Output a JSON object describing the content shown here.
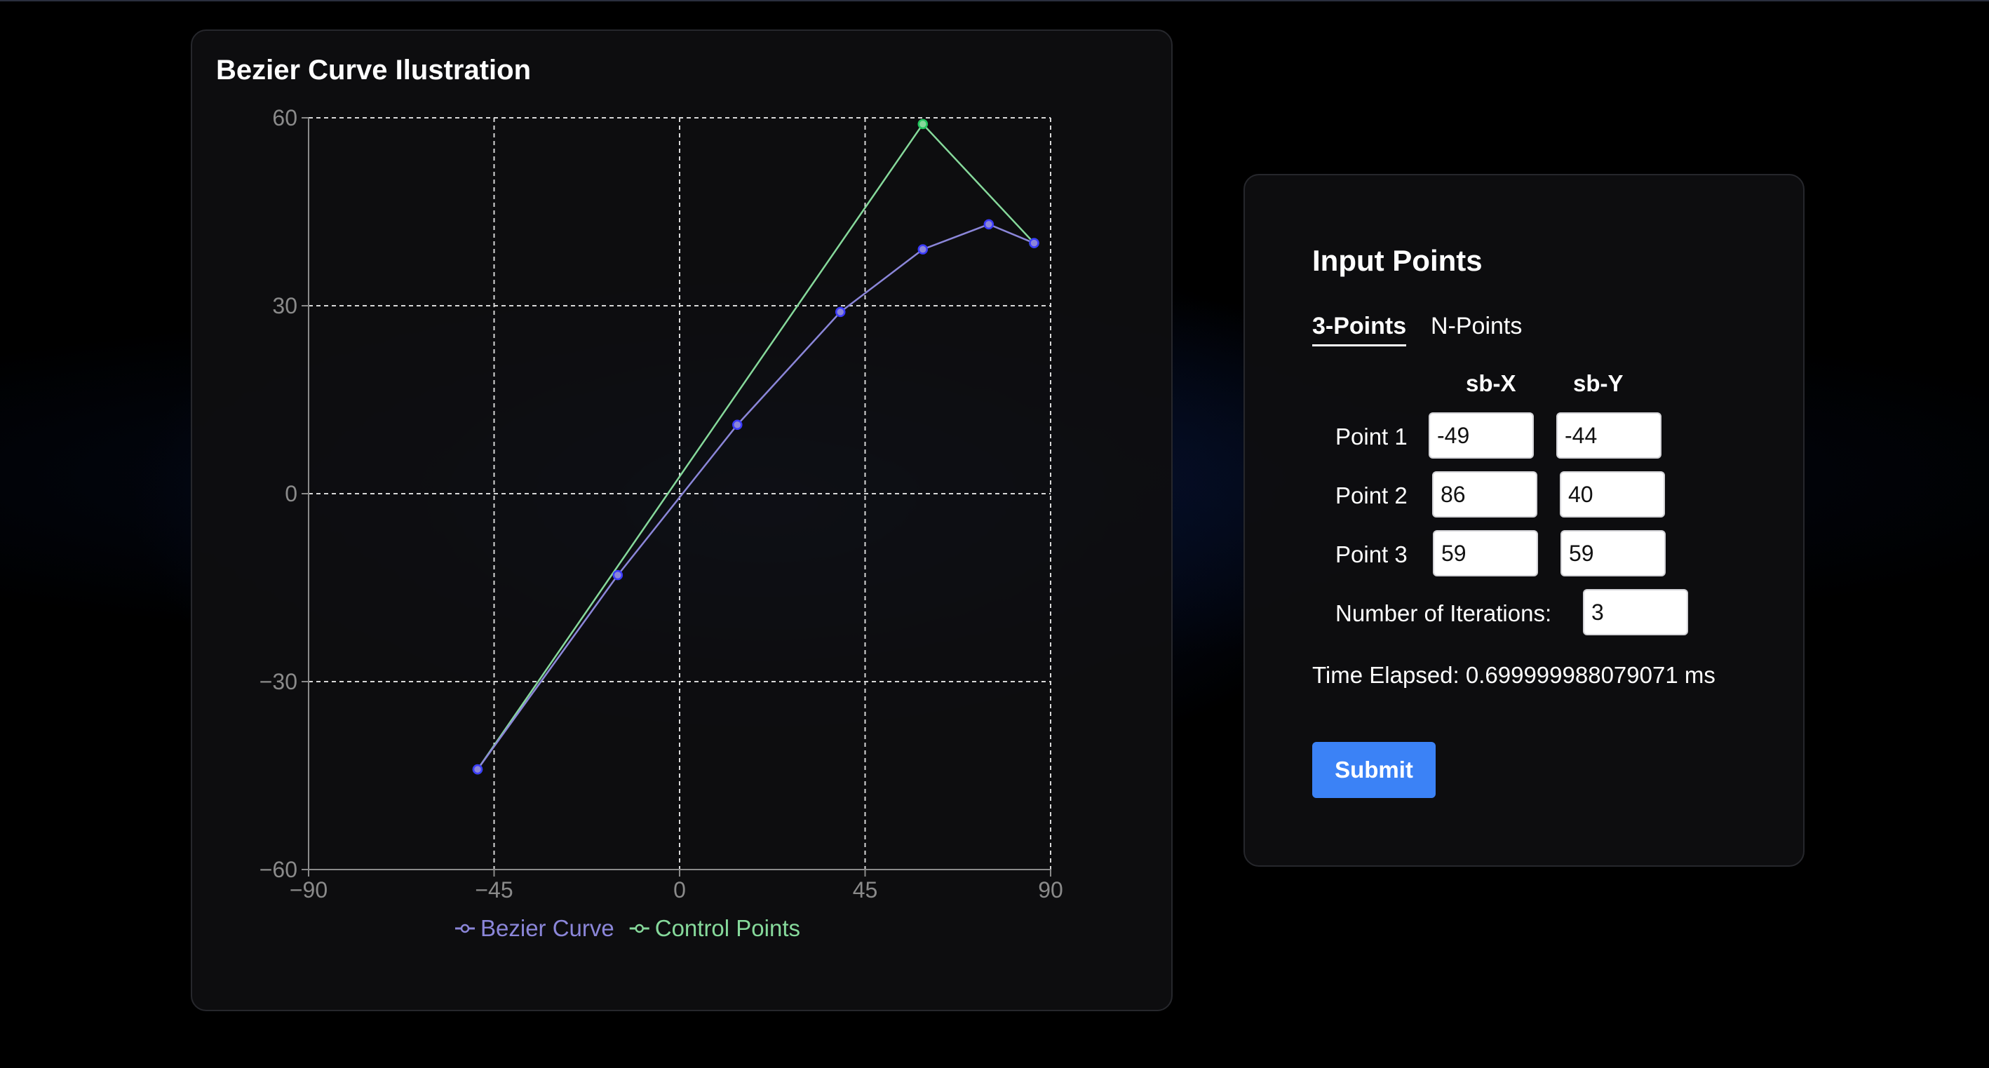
{
  "chart": {
    "title": "Bezier Curve Ilustration"
  },
  "chart_data": {
    "type": "line",
    "title": "Bezier Curve Ilustration",
    "xlabel": "",
    "ylabel": "",
    "xlim": [
      -90,
      90
    ],
    "ylim": [
      -60,
      60
    ],
    "x_ticks": [
      -90,
      -45,
      0,
      45,
      90
    ],
    "y_ticks": [
      -60,
      -30,
      0,
      30,
      60
    ],
    "grid": true,
    "legend_position": "bottom-center",
    "series": [
      {
        "name": "Bezier Curve",
        "color": "#8b86d9",
        "marker_color": "#3b3bff",
        "points": [
          [
            -49,
            -44
          ],
          [
            -15,
            -13
          ],
          [
            14,
            11
          ],
          [
            39,
            29
          ],
          [
            59,
            39
          ],
          [
            75,
            43
          ],
          [
            86,
            40
          ]
        ]
      },
      {
        "name": "Control Points",
        "color": "#86d99b",
        "marker_color": "#22c55e",
        "points": [
          [
            -49,
            -44
          ],
          [
            59,
            59
          ],
          [
            86,
            40
          ]
        ]
      }
    ]
  },
  "input_panel": {
    "title": "Input Points",
    "tabs": [
      "3-Points",
      "N-Points"
    ],
    "active_tab": "3-Points",
    "col_x": "sb-X",
    "col_y": "sb-Y",
    "points": [
      {
        "label": "Point 1",
        "x": "-49",
        "y": "-44"
      },
      {
        "label": "Point 2",
        "x": "86",
        "y": "40"
      },
      {
        "label": "Point 3",
        "x": "59",
        "y": "59"
      }
    ],
    "iterations_label": "Number of Iterations:",
    "iterations_value": "3",
    "time_label": "Time Elapsed:",
    "time_value": "0.699999988079071",
    "time_unit": "ms",
    "submit_label": "Submit",
    "accent": "#3b82f6"
  }
}
